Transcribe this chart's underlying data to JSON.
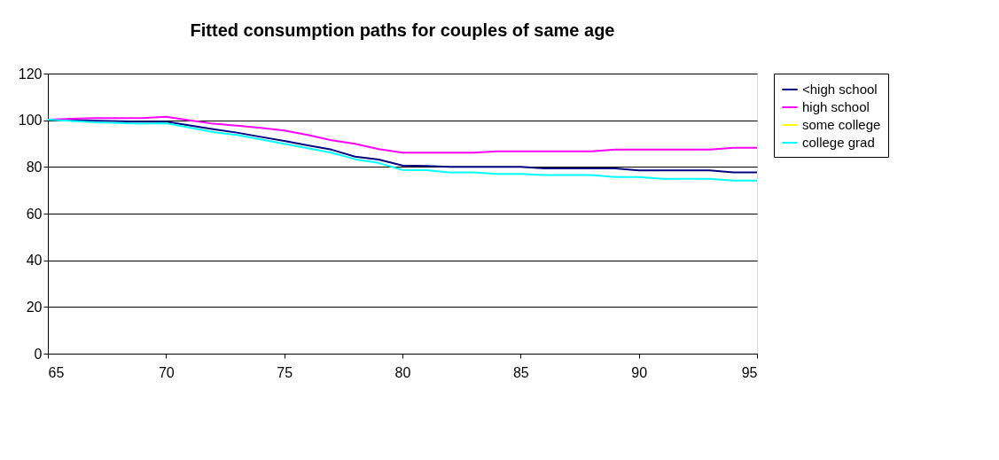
{
  "chart_data": {
    "type": "line",
    "title": "Fitted consumption paths for couples of same age",
    "x": [
      65,
      66,
      67,
      68,
      69,
      70,
      71,
      72,
      73,
      74,
      75,
      76,
      77,
      78,
      79,
      80,
      81,
      82,
      83,
      84,
      85,
      86,
      87,
      88,
      89,
      90,
      91,
      92,
      93,
      94,
      95
    ],
    "series": [
      {
        "name": "<high school",
        "color": "#000080",
        "values": [
          100.3,
          100,
          99.8,
          99.6,
          99.4,
          99.4,
          97.8,
          96.2,
          94.7,
          92.9,
          91.1,
          89.2,
          87.4,
          84.4,
          83.2,
          80.6,
          80.4,
          80,
          80,
          80,
          80,
          79.4,
          79.4,
          79.4,
          79.4,
          78.5,
          78.5,
          78.5,
          78.5,
          77.7,
          77.7
        ]
      },
      {
        "name": "high school",
        "color": "#ff00ff",
        "values": [
          100.3,
          100.6,
          100.9,
          100.9,
          100.9,
          101.5,
          100,
          98.5,
          97.7,
          96.7,
          95.6,
          93.7,
          91.4,
          89.9,
          87.6,
          86.1,
          86.1,
          86.1,
          86.1,
          86.7,
          86.7,
          86.7,
          86.7,
          86.7,
          87.4,
          87.4,
          87.4,
          87.4,
          87.4,
          88.2,
          88.2
        ]
      },
      {
        "name": "some college",
        "color": "#ffff00",
        "values": [
          null,
          null,
          null,
          null,
          null,
          null,
          null,
          null,
          null,
          null,
          null,
          null,
          null,
          null,
          null,
          null,
          null,
          null,
          null,
          null,
          null,
          null,
          null,
          null,
          null,
          null,
          null,
          null,
          null,
          null,
          null
        ]
      },
      {
        "name": "college grad",
        "color": "#00ffff",
        "values": [
          100.3,
          99.7,
          99.1,
          98.8,
          98.5,
          98.7,
          96.8,
          94.9,
          93.7,
          91.8,
          89.9,
          88,
          86.1,
          83.3,
          81.7,
          78.7,
          78.6,
          77.7,
          77.7,
          77,
          77,
          76.5,
          76.5,
          76.5,
          75.7,
          75.7,
          74.9,
          74.9,
          74.9,
          74.1,
          74.1
        ]
      }
    ],
    "xlim": [
      65,
      95
    ],
    "xticks": [
      65,
      70,
      75,
      80,
      85,
      90,
      95
    ],
    "ylim": [
      0,
      120
    ],
    "yticks": [
      0,
      20,
      40,
      60,
      80,
      100,
      120
    ],
    "grid": "y",
    "legend": "right"
  }
}
